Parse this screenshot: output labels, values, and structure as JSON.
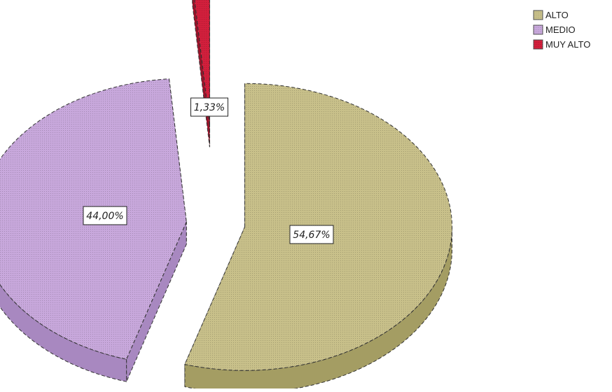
{
  "chart_data": {
    "type": "pie",
    "style": "3d-exploded",
    "title": "",
    "slices": [
      {
        "name": "ALTO",
        "value": 54.67,
        "label": "54,67%",
        "color": "#c8c08a",
        "side_color": "#a49d63"
      },
      {
        "name": "MEDIO",
        "value": 44.0,
        "label": "44,00%",
        "color": "#c8a8dc",
        "side_color": "#a888c0"
      },
      {
        "name": "MUY ALTO",
        "value": 1.33,
        "label": "1,33%",
        "color": "#d21f3c",
        "side_color": "#9c1229"
      }
    ],
    "legend": {
      "position": "top-right",
      "entries": [
        "ALTO",
        "MEDIO",
        "MUY ALTO"
      ]
    }
  }
}
